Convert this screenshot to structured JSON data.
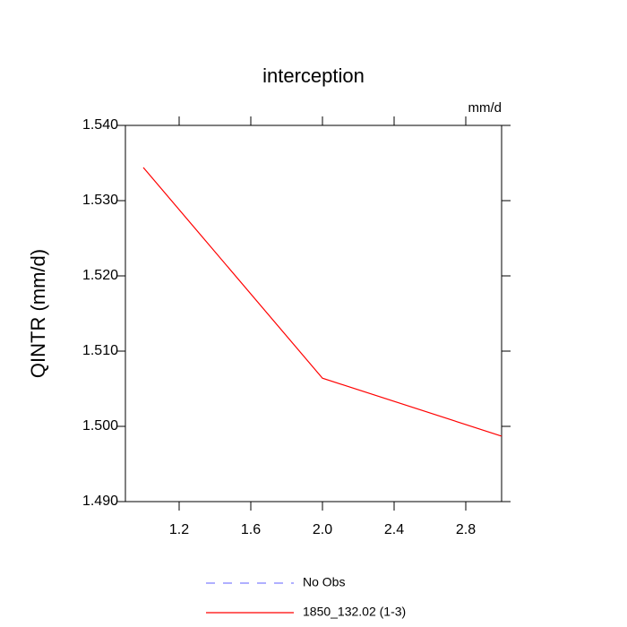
{
  "chart_data": {
    "type": "line",
    "title": "interception",
    "ylabel": "QINTR  (mm/d)",
    "annotation": "mm/d",
    "x": [
      1.0,
      2.0,
      3.0
    ],
    "series": [
      {
        "name": "No Obs",
        "color": "#8080ff",
        "dashed": true,
        "values": [
          null,
          null,
          null
        ]
      },
      {
        "name": "1850_132.02 (1-3)",
        "color": "#ff0000",
        "dashed": false,
        "values": [
          1.5344,
          1.5064,
          1.4987
        ]
      }
    ],
    "xlim": [
      0.9,
      3.0
    ],
    "xticks": [
      1.2,
      1.6,
      {
        "value": 2.0,
        "label": "2.0"
      },
      2.4,
      2.8
    ],
    "ylim": [
      1.49,
      1.54
    ],
    "yticks": [
      {
        "value": 1.49,
        "label": "1.490"
      },
      {
        "value": 1.5,
        "label": "1.500"
      },
      {
        "value": 1.51,
        "label": "1.510"
      },
      {
        "value": 1.52,
        "label": "1.520"
      },
      {
        "value": 1.53,
        "label": "1.530"
      },
      {
        "value": 1.54,
        "label": "1.540"
      }
    ]
  }
}
